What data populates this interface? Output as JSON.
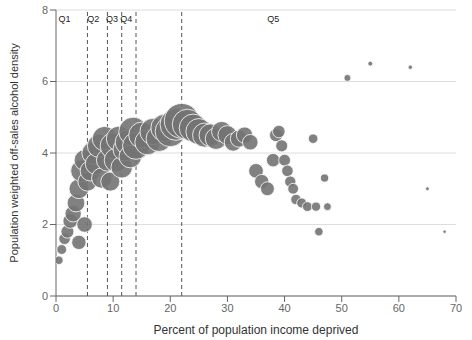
{
  "chart_data": {
    "type": "scatter",
    "title": "",
    "xlabel": "Percent of population income deprived",
    "ylabel": "Population weighted off-sales alcohol density",
    "xlim": [
      0,
      70
    ],
    "ylim": [
      0,
      8
    ],
    "xticks": [
      0,
      10,
      20,
      30,
      40,
      50,
      60,
      70
    ],
    "yticks": [
      0,
      2,
      4,
      6,
      8
    ],
    "grid": true,
    "color": "#737373",
    "vlines": [
      5.5,
      9.0,
      11.5,
      14.0,
      22.0
    ],
    "annotations": [
      {
        "text": "Q1",
        "x": 1.5
      },
      {
        "text": "Q2",
        "x": 6.5
      },
      {
        "text": "Q3",
        "x": 9.8
      },
      {
        "text": "Q4",
        "x": 12.3
      },
      {
        "text": "Q5",
        "x": 38.0
      }
    ],
    "x": [
      0.5,
      1.0,
      1.5,
      2.0,
      2.5,
      3.0,
      3.5,
      4.0,
      4.0,
      4.5,
      5.0,
      5.0,
      5.5,
      6.0,
      6.5,
      7.0,
      7.5,
      8.0,
      8.5,
      9.0,
      9.5,
      10.0,
      10.5,
      11.0,
      11.5,
      12.0,
      12.5,
      13.0,
      13.5,
      14.0,
      15.0,
      16.0,
      17.0,
      18.0,
      19.0,
      20.0,
      21.0,
      22.0,
      23.0,
      24.0,
      25.0,
      26.0,
      27.0,
      28.0,
      29.0,
      30.0,
      31.0,
      32.0,
      33.0,
      34.0,
      35.0,
      36.0,
      37.0,
      38.0,
      38.5,
      39.0,
      39.5,
      40.0,
      40.5,
      41.0,
      41.5,
      42.0,
      43.0,
      44.0,
      45.0,
      45.5,
      46.0,
      47.0,
      47.5,
      51.0,
      55.0,
      62.0,
      65.0,
      68.0
    ],
    "values": [
      1.0,
      1.3,
      1.6,
      1.8,
      2.1,
      2.3,
      2.6,
      1.5,
      3.0,
      3.5,
      2.0,
      3.8,
      3.2,
      3.5,
      4.0,
      3.7,
      4.2,
      3.3,
      4.4,
      3.8,
      3.2,
      4.2,
      3.8,
      4.4,
      3.6,
      4.1,
      4.3,
      3.9,
      4.6,
      4.2,
      4.5,
      4.3,
      4.6,
      4.4,
      4.7,
      4.6,
      4.8,
      4.9,
      4.8,
      4.7,
      4.6,
      4.5,
      4.5,
      4.4,
      4.6,
      4.5,
      4.3,
      4.4,
      4.5,
      4.3,
      3.5,
      3.2,
      3.0,
      3.8,
      4.5,
      4.6,
      4.2,
      3.8,
      3.5,
      3.2,
      3.0,
      2.7,
      2.6,
      2.5,
      4.4,
      2.5,
      1.8,
      3.3,
      2.5,
      6.1,
      6.5,
      6.4,
      3.0,
      1.8
    ],
    "sizes": [
      30,
      40,
      55,
      70,
      90,
      110,
      130,
      85,
      160,
      200,
      100,
      180,
      150,
      170,
      210,
      190,
      220,
      170,
      250,
      200,
      150,
      280,
      230,
      260,
      190,
      220,
      250,
      210,
      340,
      300,
      280,
      260,
      290,
      270,
      310,
      380,
      420,
      500,
      380,
      320,
      280,
      240,
      210,
      190,
      170,
      150,
      130,
      120,
      110,
      100,
      90,
      85,
      80,
      75,
      70,
      65,
      60,
      58,
      55,
      52,
      48,
      45,
      42,
      40,
      38,
      35,
      30,
      28,
      25,
      20,
      10,
      8,
      6,
      5
    ]
  }
}
